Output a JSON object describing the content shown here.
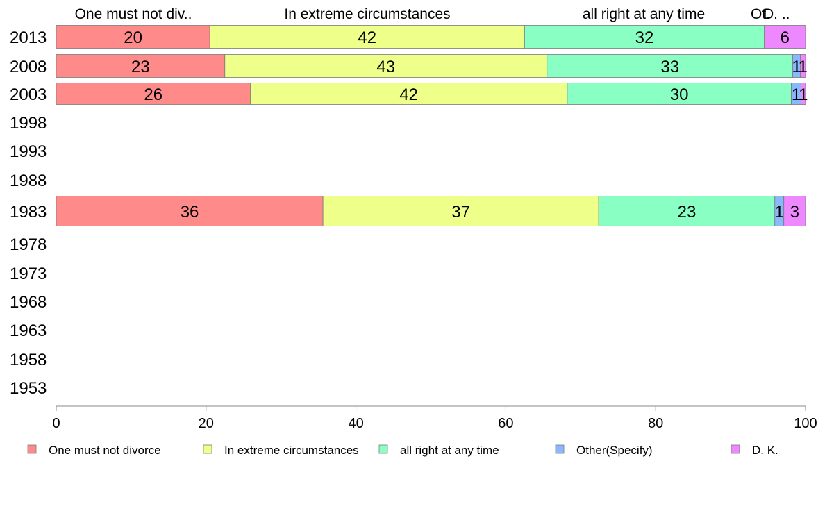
{
  "chart_data": {
    "type": "bar",
    "orientation": "horizontal",
    "stacked": true,
    "xlim": [
      0,
      100
    ],
    "x_ticks": [
      0,
      20,
      40,
      60,
      80,
      100
    ],
    "years": [
      "2013",
      "2008",
      "2003",
      "1998",
      "1993",
      "1988",
      "1983",
      "1978",
      "1973",
      "1968",
      "1963",
      "1958",
      "1953"
    ],
    "top_headers": [
      "One must not div..",
      "In extreme circumstances",
      "all right at any time",
      "Ot.",
      "D. .."
    ],
    "series": [
      {
        "name": "One must not divorce",
        "color": "#ff8a8a"
      },
      {
        "name": "In extreme circumstances",
        "color": "#eeff8a"
      },
      {
        "name": "all right at any time",
        "color": "#8affc4"
      },
      {
        "name": "Other(Specify)",
        "color": "#8ab8ff"
      },
      {
        "name": "D. K.",
        "color": "#ee88ff"
      }
    ],
    "bars": [
      {
        "year": "2013",
        "values": [
          20.5,
          42,
          32,
          0,
          5.5
        ],
        "labels": [
          "20",
          "42",
          "32",
          "",
          "6"
        ]
      },
      {
        "year": "2008",
        "values": [
          22.5,
          43,
          32.8,
          1,
          0.7
        ],
        "labels": [
          "23",
          "43",
          "33",
          "1",
          "1"
        ]
      },
      {
        "year": "2003",
        "values": [
          25.9,
          42.3,
          29.9,
          1.3,
          0.6
        ],
        "labels": [
          "26",
          "42",
          "30",
          "1",
          "1"
        ]
      },
      {
        "year": "1983",
        "values": [
          35.6,
          36.8,
          23.5,
          1.2,
          2.9
        ],
        "labels": [
          "36",
          "37",
          "23",
          "1",
          "3"
        ]
      }
    ]
  }
}
